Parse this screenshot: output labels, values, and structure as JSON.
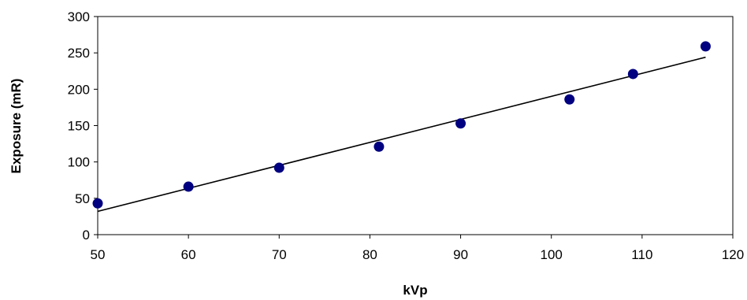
{
  "chart_data": {
    "type": "scatter",
    "title": "",
    "xlabel": "kVp",
    "ylabel": "Exposure (mR)",
    "xlim": [
      50,
      120
    ],
    "ylim": [
      0,
      300
    ],
    "xticks": [
      50,
      60,
      70,
      80,
      90,
      100,
      110,
      120
    ],
    "yticks": [
      0,
      50,
      100,
      150,
      200,
      250,
      300
    ],
    "grid": false,
    "legend": "none",
    "series": [
      {
        "x": [
          50,
          60,
          70,
          81,
          90,
          102,
          109,
          117
        ],
        "y": [
          43,
          66,
          92,
          121,
          153,
          186,
          221,
          259
        ],
        "marker_color": "#000080"
      }
    ],
    "trendline": {
      "type": "linear",
      "x": [
        50,
        117
      ],
      "y": [
        32,
        244
      ],
      "color": "#000000"
    }
  }
}
